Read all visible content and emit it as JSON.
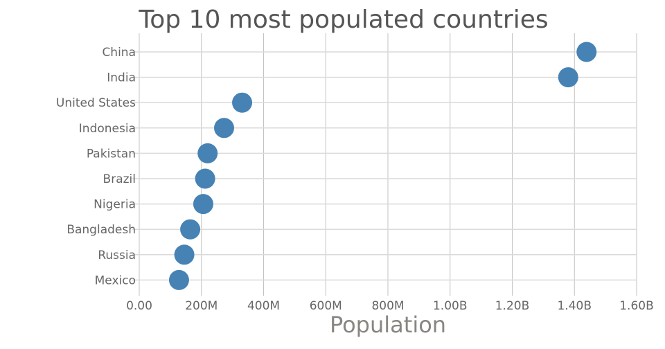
{
  "chart_data": {
    "type": "scatter",
    "title": "Top 10 most populated countries",
    "xlabel": "Population",
    "ylabel": "",
    "xlim": [
      0,
      1600000000
    ],
    "x_ticks": [
      0,
      200000000,
      400000000,
      600000000,
      800000000,
      1000000000,
      1200000000,
      1400000000,
      1600000000
    ],
    "x_tick_labels": [
      "0.00",
      "200M",
      "400M",
      "600M",
      "800M",
      "1.00B",
      "1.20B",
      "1.40B",
      "1.60B"
    ],
    "categories": [
      "China",
      "India",
      "United States",
      "Indonesia",
      "Pakistan",
      "Brazil",
      "Nigeria",
      "Bangladesh",
      "Russia",
      "Mexico"
    ],
    "values": [
      1439000000,
      1380000000,
      331000000,
      273000000,
      220000000,
      212000000,
      206000000,
      164000000,
      145000000,
      128000000
    ],
    "grid": true,
    "marker_color": "#4682b4"
  }
}
